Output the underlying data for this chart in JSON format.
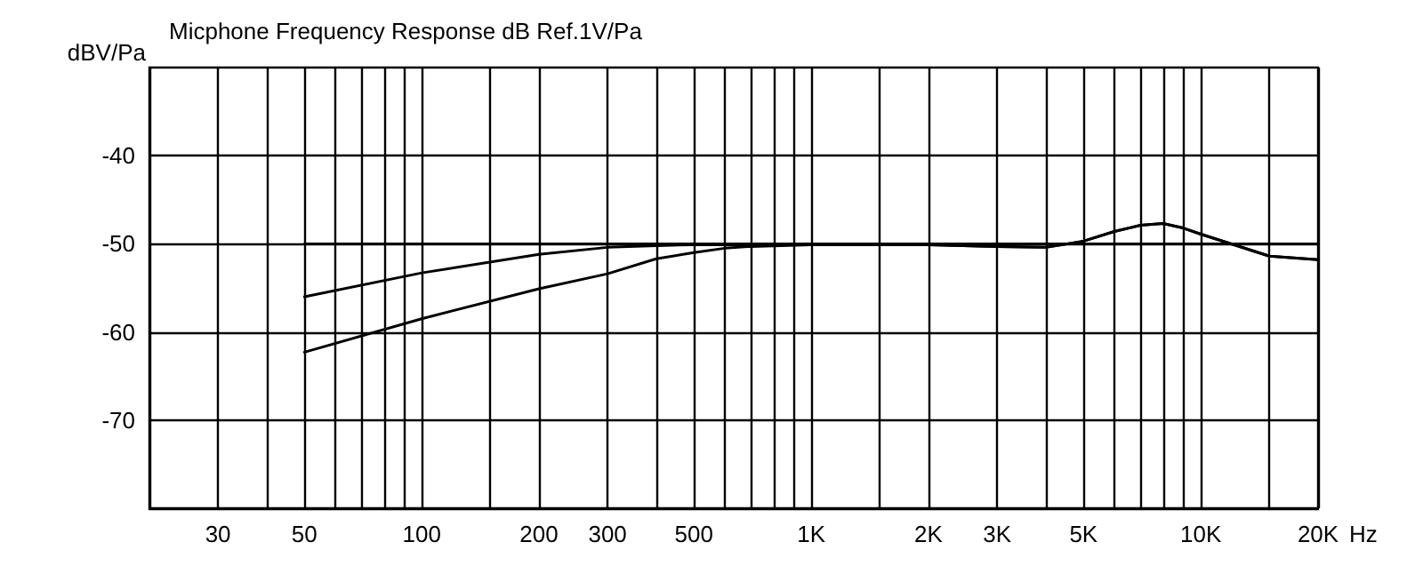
{
  "chart_data": {
    "type": "line",
    "title": "Micphone Frequency Response dB Ref.1V/Pa",
    "ylabel": "dBV/Pa",
    "xlabel": "Hz",
    "log": "x",
    "grid": true,
    "marker": "none",
    "line_style": "solid",
    "xlim": [
      20,
      20000
    ],
    "xticks": [
      30,
      {
        "value": 40,
        "label": null
      },
      50,
      {
        "value": 60,
        "label": null
      },
      {
        "value": 70,
        "label": null
      },
      {
        "value": 80,
        "label": null
      },
      {
        "value": 90,
        "label": null
      },
      100,
      {
        "value": 150,
        "label": null
      },
      200,
      300,
      {
        "value": 400,
        "label": null
      },
      500,
      {
        "value": 600,
        "label": null
      },
      {
        "value": 700,
        "label": null
      },
      {
        "value": 800,
        "label": null
      },
      {
        "value": 900,
        "label": null
      },
      {
        "value": 1000,
        "label": "1K"
      },
      {
        "value": 1500,
        "label": null
      },
      {
        "value": 2000,
        "label": "2K"
      },
      {
        "value": 3000,
        "label": "3K"
      },
      {
        "value": 4000,
        "label": null
      },
      {
        "value": 5000,
        "label": "5K"
      },
      {
        "value": 6000,
        "label": null
      },
      {
        "value": 7000,
        "label": null
      },
      {
        "value": 8000,
        "label": null
      },
      {
        "value": 9000,
        "label": null
      },
      {
        "value": 10000,
        "label": "10K"
      },
      {
        "value": 15000,
        "label": null
      },
      {
        "value": 20000,
        "label": "20K"
      }
    ],
    "ylim": [
      -80,
      -30
    ],
    "yticks": [
      -70,
      -60,
      -50,
      -40
    ],
    "series": [
      {
        "color": "#000000",
        "x": [
          50,
          20000
        ],
        "values": [
          -50,
          -50
        ]
      },
      {
        "color": "#000000",
        "x": [
          50,
          100,
          200,
          300,
          400,
          500,
          700,
          1000,
          2000,
          3000,
          4000,
          5000,
          6000,
          7000,
          8000,
          9000,
          10000,
          15000,
          20000
        ],
        "values": [
          -56,
          -53.3,
          -51.2,
          -50.4,
          -50.2,
          -50.1,
          -50.1,
          -50.1,
          -50.1,
          -50.3,
          -50.4,
          -49.7,
          -48.6,
          -47.9,
          -47.7,
          -48.2,
          -48.9,
          -51.4,
          -51.8
        ]
      },
      {
        "color": "#000000",
        "x": [
          50,
          100,
          200,
          300,
          400,
          500,
          600,
          700,
          1000,
          2000,
          3000,
          4000,
          5000,
          6000,
          7000,
          8000,
          9000,
          10000,
          15000,
          20000
        ],
        "values": [
          -62.3,
          -58.5,
          -55.1,
          -53.4,
          -51.7,
          -51,
          -50.5,
          -50.3,
          -50.1,
          -50.1,
          -50.3,
          -50.4,
          -49.7,
          -48.6,
          -47.9,
          -47.7,
          -48.2,
          -48.9,
          -51.4,
          -51.8
        ]
      }
    ]
  }
}
